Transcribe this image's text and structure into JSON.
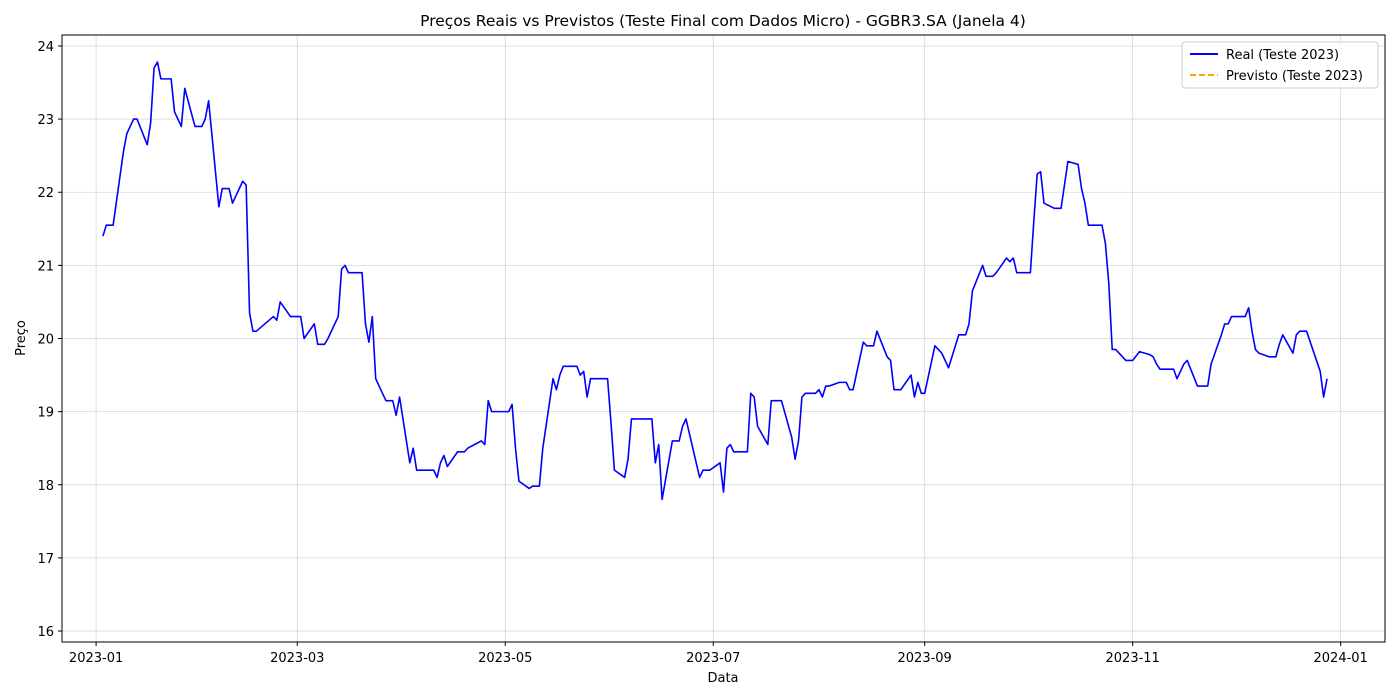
{
  "chart_data": {
    "type": "line",
    "title": "Preços Reais vs Previstos (Teste Final com Dados Micro) - GGBR3.SA (Janela 4)",
    "xlabel": "Data",
    "ylabel": "Preço",
    "xlim": [
      "2022-12-22",
      "2024-01-14"
    ],
    "ylim": [
      15.85,
      24.15
    ],
    "grid": true,
    "legend_position": "top-right",
    "x_ticks": [
      "2023-01-01",
      "2023-03-01",
      "2023-05-01",
      "2023-07-01",
      "2023-09-01",
      "2023-11-01",
      "2024-01-01"
    ],
    "x_tick_labels": [
      "2023-01",
      "2023-03",
      "2023-05",
      "2023-07",
      "2023-09",
      "2023-11",
      "2024-01"
    ],
    "y_ticks": [
      16,
      17,
      18,
      19,
      20,
      21,
      22,
      23,
      24
    ],
    "y_tick_labels": [
      "16",
      "17",
      "18",
      "19",
      "20",
      "21",
      "22",
      "23",
      "24"
    ],
    "series": [
      {
        "name": "Real (Teste 2023)",
        "color": "#0000ff",
        "style": "solid",
        "points": [
          [
            "2023-01-03",
            21.4
          ],
          [
            "2023-01-04",
            21.55
          ],
          [
            "2023-01-05",
            21.55
          ],
          [
            "2023-01-06",
            21.55
          ],
          [
            "2023-01-09",
            22.55
          ],
          [
            "2023-01-10",
            22.8
          ],
          [
            "2023-01-11",
            22.9
          ],
          [
            "2023-01-12",
            23.0
          ],
          [
            "2023-01-13",
            23.0
          ],
          [
            "2023-01-16",
            22.65
          ],
          [
            "2023-01-17",
            22.95
          ],
          [
            "2023-01-18",
            23.7
          ],
          [
            "2023-01-19",
            23.78
          ],
          [
            "2023-01-20",
            23.55
          ],
          [
            "2023-01-23",
            23.55
          ],
          [
            "2023-01-24",
            23.1
          ],
          [
            "2023-01-25",
            23.0
          ],
          [
            "2023-01-26",
            22.9
          ],
          [
            "2023-01-27",
            23.42
          ],
          [
            "2023-01-30",
            22.9
          ],
          [
            "2023-01-31",
            22.9
          ],
          [
            "2023-02-01",
            22.9
          ],
          [
            "2023-02-02",
            23.0
          ],
          [
            "2023-02-03",
            23.25
          ],
          [
            "2023-02-06",
            21.8
          ],
          [
            "2023-02-07",
            22.05
          ],
          [
            "2023-02-08",
            22.05
          ],
          [
            "2023-02-09",
            22.05
          ],
          [
            "2023-02-10",
            21.85
          ],
          [
            "2023-02-13",
            22.15
          ],
          [
            "2023-02-14",
            22.1
          ],
          [
            "2023-02-15",
            20.35
          ],
          [
            "2023-02-16",
            20.1
          ],
          [
            "2023-02-17",
            20.1
          ],
          [
            "2023-02-22",
            20.3
          ],
          [
            "2023-02-23",
            20.25
          ],
          [
            "2023-02-24",
            20.5
          ],
          [
            "2023-02-27",
            20.3
          ],
          [
            "2023-02-28",
            20.3
          ],
          [
            "2023-03-01",
            20.3
          ],
          [
            "2023-03-02",
            20.3
          ],
          [
            "2023-03-03",
            20.0
          ],
          [
            "2023-03-06",
            20.2
          ],
          [
            "2023-03-07",
            19.92
          ],
          [
            "2023-03-08",
            19.92
          ],
          [
            "2023-03-09",
            19.92
          ],
          [
            "2023-03-10",
            20.0
          ],
          [
            "2023-03-13",
            20.3
          ],
          [
            "2023-03-14",
            20.95
          ],
          [
            "2023-03-15",
            21.0
          ],
          [
            "2023-03-16",
            20.9
          ],
          [
            "2023-03-17",
            20.9
          ],
          [
            "2023-03-20",
            20.9
          ],
          [
            "2023-03-21",
            20.2
          ],
          [
            "2023-03-22",
            19.95
          ],
          [
            "2023-03-23",
            20.3
          ],
          [
            "2023-03-24",
            19.45
          ],
          [
            "2023-03-27",
            19.15
          ],
          [
            "2023-03-28",
            19.15
          ],
          [
            "2023-03-29",
            19.15
          ],
          [
            "2023-03-30",
            18.95
          ],
          [
            "2023-03-31",
            19.2
          ],
          [
            "2023-04-03",
            18.3
          ],
          [
            "2023-04-04",
            18.5
          ],
          [
            "2023-04-05",
            18.2
          ],
          [
            "2023-04-06",
            18.2
          ],
          [
            "2023-04-10",
            18.2
          ],
          [
            "2023-04-11",
            18.1
          ],
          [
            "2023-04-12",
            18.3
          ],
          [
            "2023-04-13",
            18.4
          ],
          [
            "2023-04-14",
            18.25
          ],
          [
            "2023-04-17",
            18.45
          ],
          [
            "2023-04-18",
            18.45
          ],
          [
            "2023-04-19",
            18.45
          ],
          [
            "2023-04-20",
            18.5
          ],
          [
            "2023-04-24",
            18.6
          ],
          [
            "2023-04-25",
            18.55
          ],
          [
            "2023-04-26",
            19.15
          ],
          [
            "2023-04-27",
            19.0
          ],
          [
            "2023-04-28",
            19.0
          ],
          [
            "2023-05-02",
            19.0
          ],
          [
            "2023-05-03",
            19.1
          ],
          [
            "2023-05-04",
            18.5
          ],
          [
            "2023-05-05",
            18.05
          ],
          [
            "2023-05-08",
            17.95
          ],
          [
            "2023-05-09",
            17.98
          ],
          [
            "2023-05-10",
            17.98
          ],
          [
            "2023-05-11",
            17.98
          ],
          [
            "2023-05-12",
            18.5
          ],
          [
            "2023-05-15",
            19.45
          ],
          [
            "2023-05-16",
            19.3
          ],
          [
            "2023-05-17",
            19.5
          ],
          [
            "2023-05-18",
            19.62
          ],
          [
            "2023-05-19",
            19.62
          ],
          [
            "2023-05-22",
            19.62
          ],
          [
            "2023-05-23",
            19.5
          ],
          [
            "2023-05-24",
            19.55
          ],
          [
            "2023-05-25",
            19.2
          ],
          [
            "2023-05-26",
            19.45
          ],
          [
            "2023-05-29",
            19.45
          ],
          [
            "2023-05-30",
            19.45
          ],
          [
            "2023-05-31",
            19.45
          ],
          [
            "2023-06-01",
            18.85
          ],
          [
            "2023-06-02",
            18.2
          ],
          [
            "2023-06-05",
            18.1
          ],
          [
            "2023-06-06",
            18.35
          ],
          [
            "2023-06-07",
            18.9
          ],
          [
            "2023-06-09",
            18.9
          ],
          [
            "2023-06-12",
            18.9
          ],
          [
            "2023-06-13",
            18.9
          ],
          [
            "2023-06-14",
            18.3
          ],
          [
            "2023-06-15",
            18.55
          ],
          [
            "2023-06-16",
            17.8
          ],
          [
            "2023-06-19",
            18.6
          ],
          [
            "2023-06-20",
            18.6
          ],
          [
            "2023-06-21",
            18.6
          ],
          [
            "2023-06-22",
            18.8
          ],
          [
            "2023-06-23",
            18.9
          ],
          [
            "2023-06-26",
            18.3
          ],
          [
            "2023-06-27",
            18.1
          ],
          [
            "2023-06-28",
            18.2
          ],
          [
            "2023-06-29",
            18.2
          ],
          [
            "2023-06-30",
            18.2
          ],
          [
            "2023-07-03",
            18.3
          ],
          [
            "2023-07-04",
            17.9
          ],
          [
            "2023-07-05",
            18.5
          ],
          [
            "2023-07-06",
            18.55
          ],
          [
            "2023-07-07",
            18.45
          ],
          [
            "2023-07-10",
            18.45
          ],
          [
            "2023-07-11",
            18.45
          ],
          [
            "2023-07-12",
            19.25
          ],
          [
            "2023-07-13",
            19.2
          ],
          [
            "2023-07-14",
            18.8
          ],
          [
            "2023-07-17",
            18.55
          ],
          [
            "2023-07-18",
            19.15
          ],
          [
            "2023-07-19",
            19.15
          ],
          [
            "2023-07-20",
            19.15
          ],
          [
            "2023-07-21",
            19.15
          ],
          [
            "2023-07-24",
            18.65
          ],
          [
            "2023-07-25",
            18.35
          ],
          [
            "2023-07-26",
            18.6
          ],
          [
            "2023-07-27",
            19.2
          ],
          [
            "2023-07-28",
            19.25
          ],
          [
            "2023-07-31",
            19.25
          ],
          [
            "2023-08-01",
            19.3
          ],
          [
            "2023-08-02",
            19.2
          ],
          [
            "2023-08-03",
            19.35
          ],
          [
            "2023-08-04",
            19.35
          ],
          [
            "2023-08-07",
            19.4
          ],
          [
            "2023-08-08",
            19.4
          ],
          [
            "2023-08-09",
            19.4
          ],
          [
            "2023-08-10",
            19.3
          ],
          [
            "2023-08-11",
            19.3
          ],
          [
            "2023-08-14",
            19.95
          ],
          [
            "2023-08-15",
            19.9
          ],
          [
            "2023-08-16",
            19.9
          ],
          [
            "2023-08-17",
            19.9
          ],
          [
            "2023-08-18",
            20.1
          ],
          [
            "2023-08-21",
            19.75
          ],
          [
            "2023-08-22",
            19.7
          ],
          [
            "2023-08-23",
            19.3
          ],
          [
            "2023-08-24",
            19.3
          ],
          [
            "2023-08-25",
            19.3
          ],
          [
            "2023-08-28",
            19.5
          ],
          [
            "2023-08-29",
            19.2
          ],
          [
            "2023-08-30",
            19.4
          ],
          [
            "2023-08-31",
            19.25
          ],
          [
            "2023-09-01",
            19.25
          ],
          [
            "2023-09-04",
            19.9
          ],
          [
            "2023-09-05",
            19.85
          ],
          [
            "2023-09-06",
            19.8
          ],
          [
            "2023-09-08",
            19.6
          ],
          [
            "2023-09-11",
            20.05
          ],
          [
            "2023-09-12",
            20.05
          ],
          [
            "2023-09-13",
            20.05
          ],
          [
            "2023-09-14",
            20.2
          ],
          [
            "2023-09-15",
            20.65
          ],
          [
            "2023-09-18",
            21.0
          ],
          [
            "2023-09-19",
            20.85
          ],
          [
            "2023-09-20",
            20.85
          ],
          [
            "2023-09-21",
            20.85
          ],
          [
            "2023-09-22",
            20.9
          ],
          [
            "2023-09-25",
            21.1
          ],
          [
            "2023-09-26",
            21.05
          ],
          [
            "2023-09-27",
            21.1
          ],
          [
            "2023-09-28",
            20.9
          ],
          [
            "2023-09-29",
            20.9
          ],
          [
            "2023-10-02",
            20.9
          ],
          [
            "2023-10-03",
            21.6
          ],
          [
            "2023-10-04",
            22.25
          ],
          [
            "2023-10-05",
            22.28
          ],
          [
            "2023-10-06",
            21.85
          ],
          [
            "2023-10-09",
            21.78
          ],
          [
            "2023-10-10",
            21.78
          ],
          [
            "2023-10-11",
            21.78
          ],
          [
            "2023-10-13",
            22.42
          ],
          [
            "2023-10-16",
            22.38
          ],
          [
            "2023-10-17",
            22.05
          ],
          [
            "2023-10-18",
            21.85
          ],
          [
            "2023-10-19",
            21.55
          ],
          [
            "2023-10-20",
            21.55
          ],
          [
            "2023-10-23",
            21.55
          ],
          [
            "2023-10-24",
            21.3
          ],
          [
            "2023-10-25",
            20.75
          ],
          [
            "2023-10-26",
            19.85
          ],
          [
            "2023-10-27",
            19.85
          ],
          [
            "2023-10-30",
            19.7
          ],
          [
            "2023-10-31",
            19.7
          ],
          [
            "2023-11-01",
            19.7
          ],
          [
            "2023-11-03",
            19.82
          ],
          [
            "2023-11-06",
            19.78
          ],
          [
            "2023-11-07",
            19.75
          ],
          [
            "2023-11-08",
            19.65
          ],
          [
            "2023-11-09",
            19.58
          ],
          [
            "2023-11-10",
            19.58
          ],
          [
            "2023-11-13",
            19.58
          ],
          [
            "2023-11-14",
            19.45
          ],
          [
            "2023-11-16",
            19.65
          ],
          [
            "2023-11-17",
            19.7
          ],
          [
            "2023-11-20",
            19.35
          ],
          [
            "2023-11-21",
            19.35
          ],
          [
            "2023-11-22",
            19.35
          ],
          [
            "2023-11-23",
            19.35
          ],
          [
            "2023-11-24",
            19.65
          ],
          [
            "2023-11-27",
            20.05
          ],
          [
            "2023-11-28",
            20.2
          ],
          [
            "2023-11-29",
            20.2
          ],
          [
            "2023-11-30",
            20.3
          ],
          [
            "2023-12-01",
            20.3
          ],
          [
            "2023-12-04",
            20.3
          ],
          [
            "2023-12-05",
            20.42
          ],
          [
            "2023-12-06",
            20.1
          ],
          [
            "2023-12-07",
            19.85
          ],
          [
            "2023-12-08",
            19.8
          ],
          [
            "2023-12-11",
            19.75
          ],
          [
            "2023-12-12",
            19.75
          ],
          [
            "2023-12-13",
            19.75
          ],
          [
            "2023-12-14",
            19.92
          ],
          [
            "2023-12-15",
            20.05
          ],
          [
            "2023-12-18",
            19.8
          ],
          [
            "2023-12-19",
            20.05
          ],
          [
            "2023-12-20",
            20.1
          ],
          [
            "2023-12-21",
            20.1
          ],
          [
            "2023-12-22",
            20.1
          ],
          [
            "2023-12-26",
            19.55
          ],
          [
            "2023-12-27",
            19.2
          ],
          [
            "2023-12-28",
            19.45
          ]
        ]
      },
      {
        "name": "Previsto (Teste 2023)",
        "color": "#ffa500",
        "style": "dashed",
        "points": []
      }
    ]
  }
}
